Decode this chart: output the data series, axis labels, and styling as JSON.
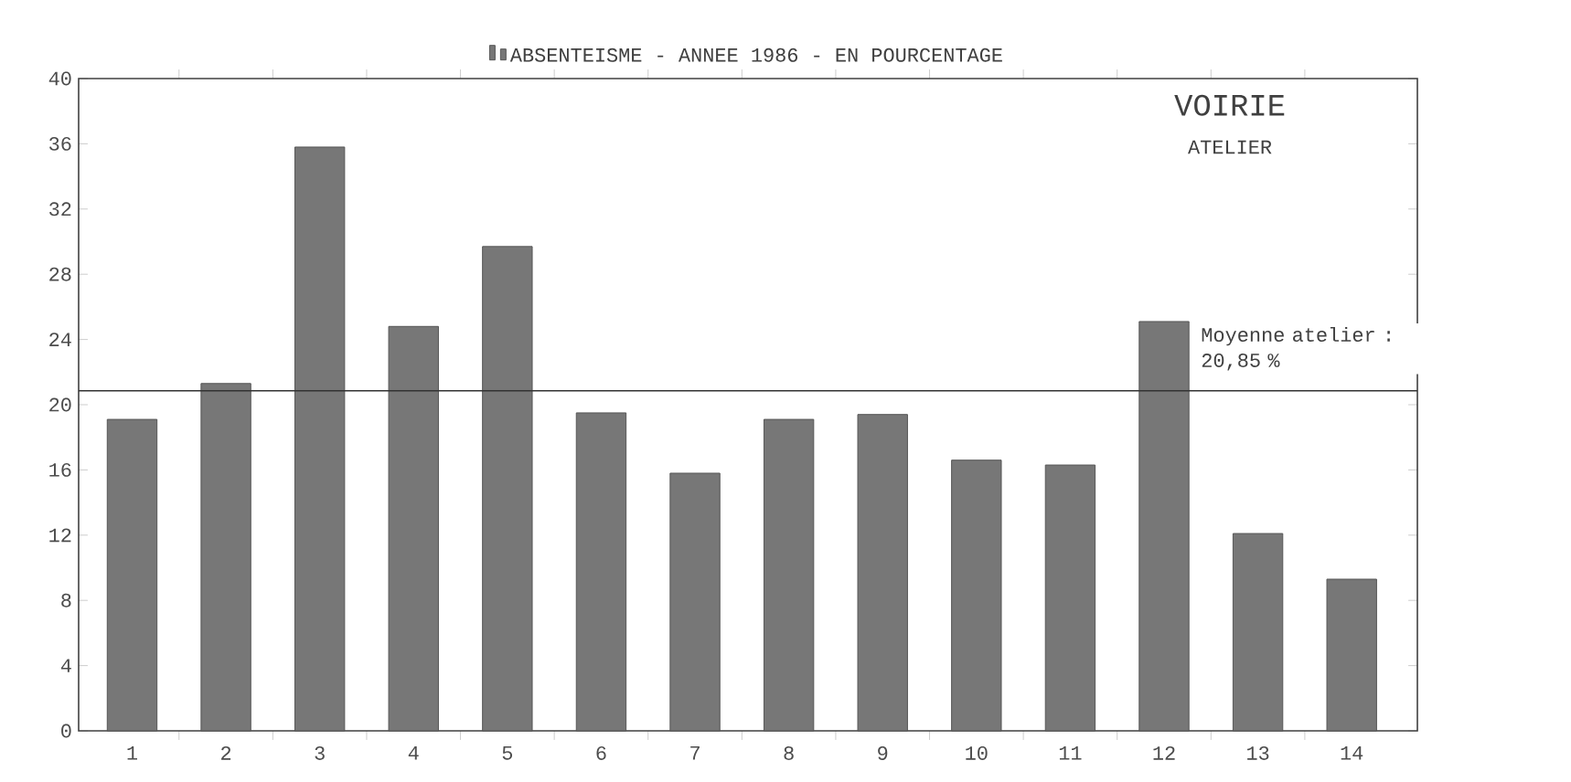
{
  "chart_data": {
    "type": "bar",
    "title": "VOIRIE",
    "subtitle": "ATELIER",
    "categories": [
      "1",
      "2",
      "3",
      "4",
      "5",
      "6",
      "7",
      "8",
      "9",
      "10",
      "11",
      "12",
      "13",
      "14"
    ],
    "series": [
      {
        "name": "ABSENTEISME - ANNEE 1986 - EN POURCENTAGE",
        "color": "#555555",
        "values": [
          19.1,
          21.3,
          35.8,
          24.8,
          29.7,
          19.5,
          15.8,
          19.1,
          19.4,
          16.6,
          16.3,
          25.1,
          12.1,
          9.3
        ]
      }
    ],
    "ylim": [
      0,
      40
    ],
    "yticks": [
      0,
      4,
      8,
      12,
      16,
      20,
      24,
      28,
      32,
      36,
      40
    ],
    "ref_lines": [
      {
        "axis": "y",
        "value": 20.85,
        "label": "Moyenne atelier : 20,85 %",
        "color": "#333333"
      }
    ],
    "legend": "top"
  }
}
